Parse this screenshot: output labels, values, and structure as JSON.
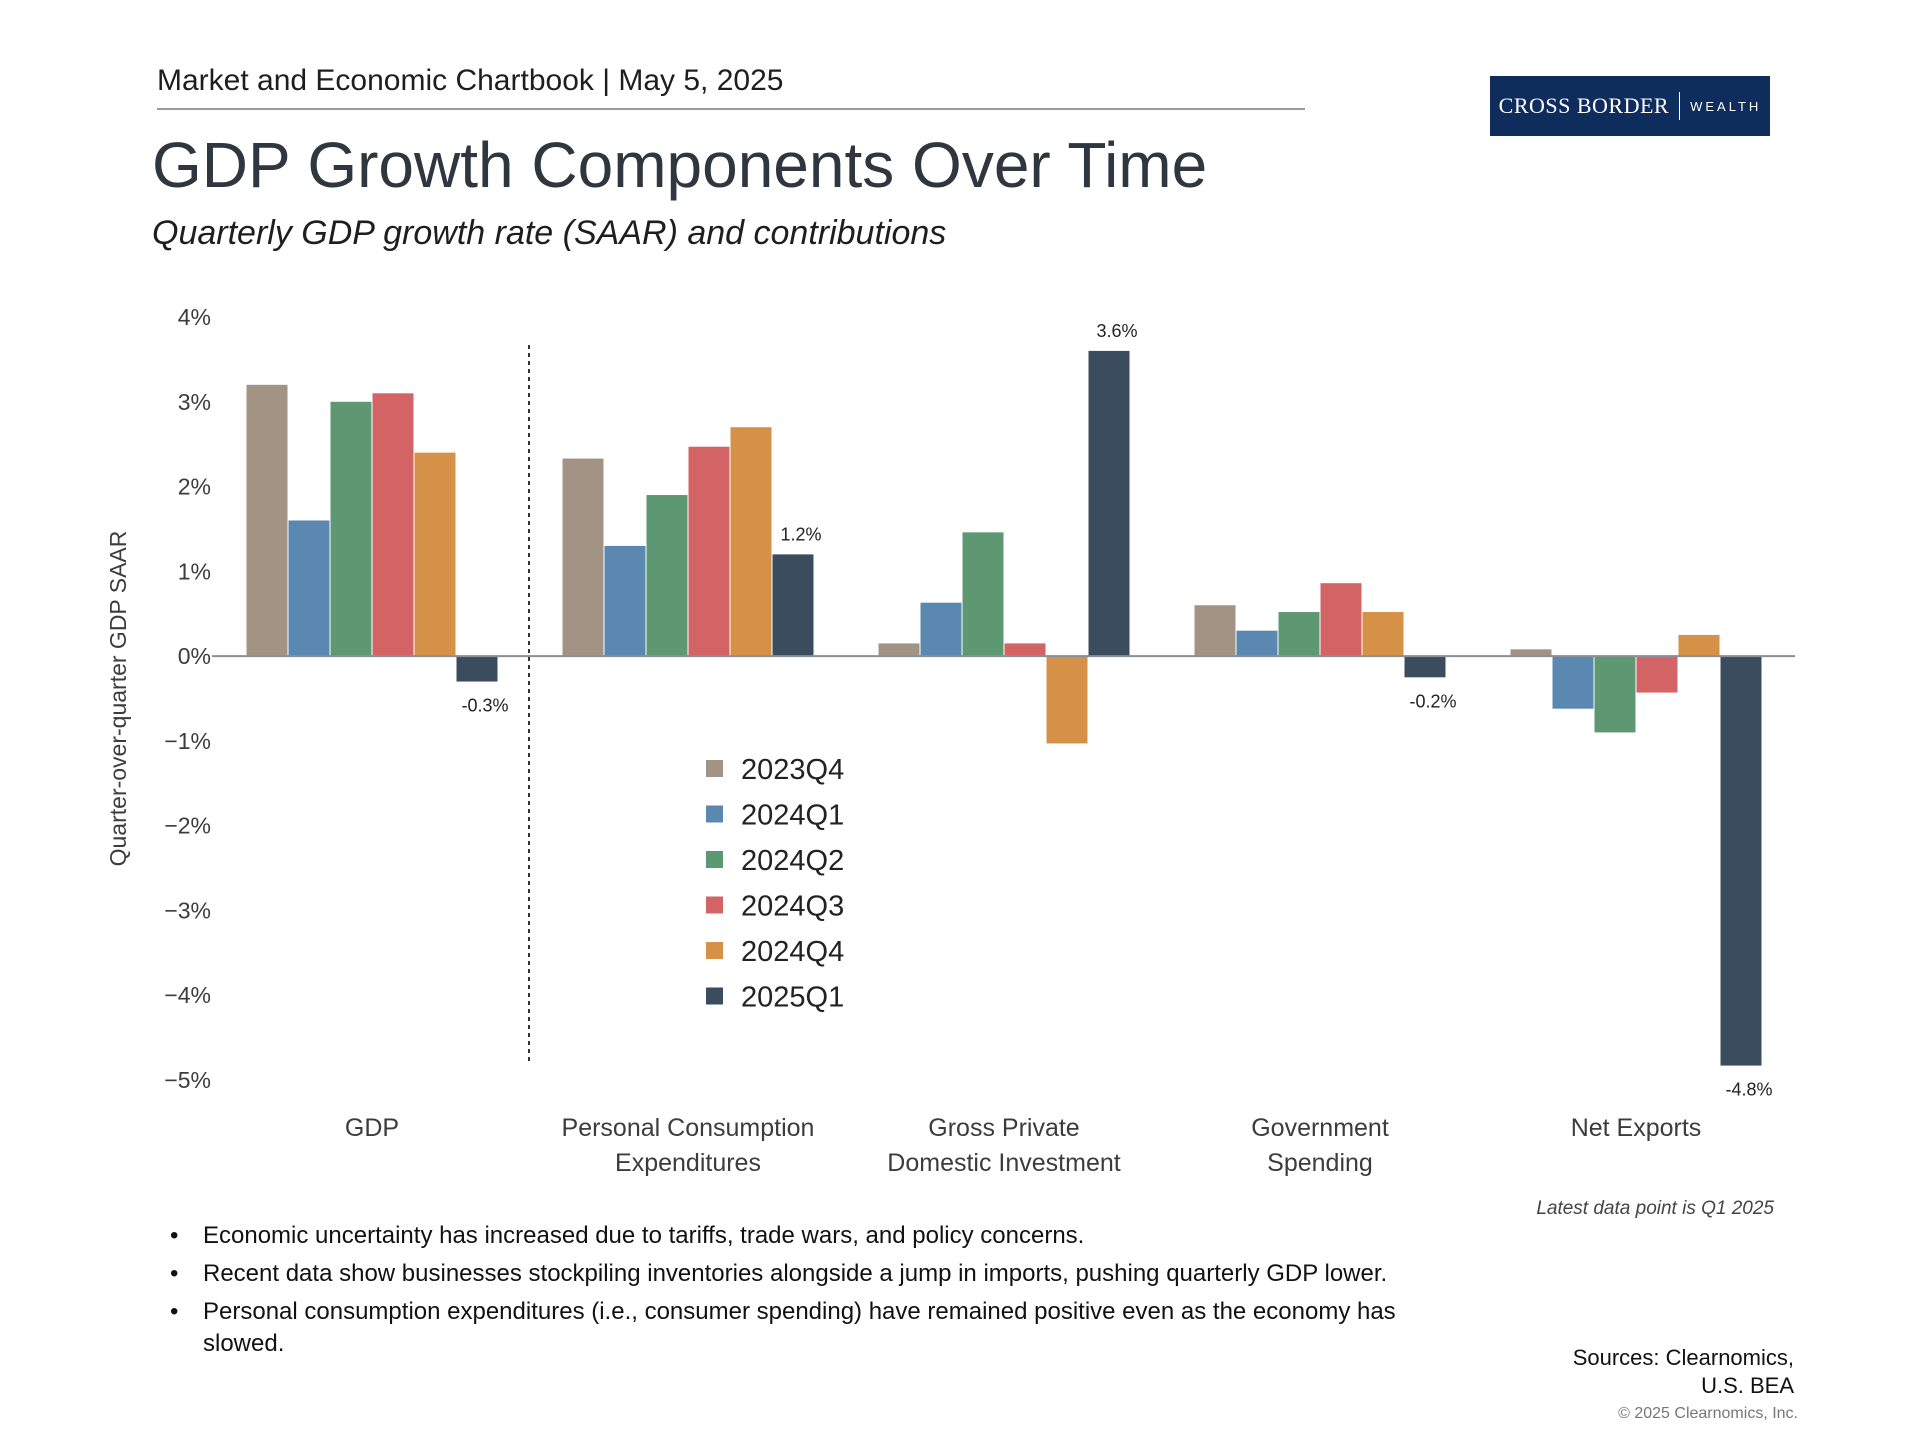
{
  "header": {
    "line": "Market and Economic Chartbook | May 5, 2025",
    "logo_main": "CROSS BORDER",
    "logo_sub": "WEALTH"
  },
  "title": "GDP Growth Components Over Time",
  "subtitle": "Quarterly GDP growth rate (SAAR) and contributions",
  "chart_data": {
    "type": "bar",
    "ylabel": "Quarter-over-quarter GDP SAAR",
    "ylim": [
      -5,
      4
    ],
    "yticks": [
      4,
      3,
      2,
      1,
      0,
      -1,
      -2,
      -3,
      -4,
      -5
    ],
    "ytick_labels": [
      "4%",
      "3%",
      "2%",
      "1%",
      "0%",
      "−1%",
      "−2%",
      "−3%",
      "−4%",
      "−5%"
    ],
    "categories": [
      [
        "GDP"
      ],
      [
        "Personal Consumption",
        "Expenditures"
      ],
      [
        "Gross Private",
        "Domestic Investment"
      ],
      [
        "Government",
        "Spending"
      ],
      [
        "Net Exports"
      ]
    ],
    "series": [
      {
        "name": "2023Q4",
        "color": "#a39385",
        "values": [
          3.2,
          2.33,
          0.15,
          0.6,
          0.08
        ]
      },
      {
        "name": "2024Q1",
        "color": "#5b88b1",
        "values": [
          1.6,
          1.3,
          0.63,
          0.3,
          -0.62
        ]
      },
      {
        "name": "2024Q2",
        "color": "#5e9873",
        "values": [
          3.0,
          1.9,
          1.46,
          0.52,
          -0.9
        ]
      },
      {
        "name": "2024Q3",
        "color": "#d26466",
        "values": [
          3.1,
          2.47,
          0.15,
          0.86,
          -0.43
        ]
      },
      {
        "name": "2024Q4",
        "color": "#d69148",
        "values": [
          2.4,
          2.7,
          -1.03,
          0.52,
          0.25
        ]
      },
      {
        "name": "2025Q1",
        "color": "#3a4c5e",
        "values": [
          -0.3,
          1.2,
          3.6,
          -0.25,
          -4.83
        ]
      }
    ],
    "data_labels": [
      "-0.3%",
      "1.2%",
      "3.6%",
      "-0.2%",
      "-4.8%"
    ],
    "note": "Latest data point is Q1 2025",
    "legend_position": "center"
  },
  "bullets": [
    "Economic uncertainty has increased due to tariffs, trade wars, and policy concerns.",
    "Recent data show businesses stockpiling inventories alongside a jump in imports, pushing quarterly GDP lower.",
    "Personal consumption expenditures (i.e., consumer spending) have remained positive even as the economy has slowed."
  ],
  "sources": [
    "Sources: Clearnomics,",
    "U.S. BEA"
  ],
  "copyright": "© 2025 Clearnomics, Inc."
}
